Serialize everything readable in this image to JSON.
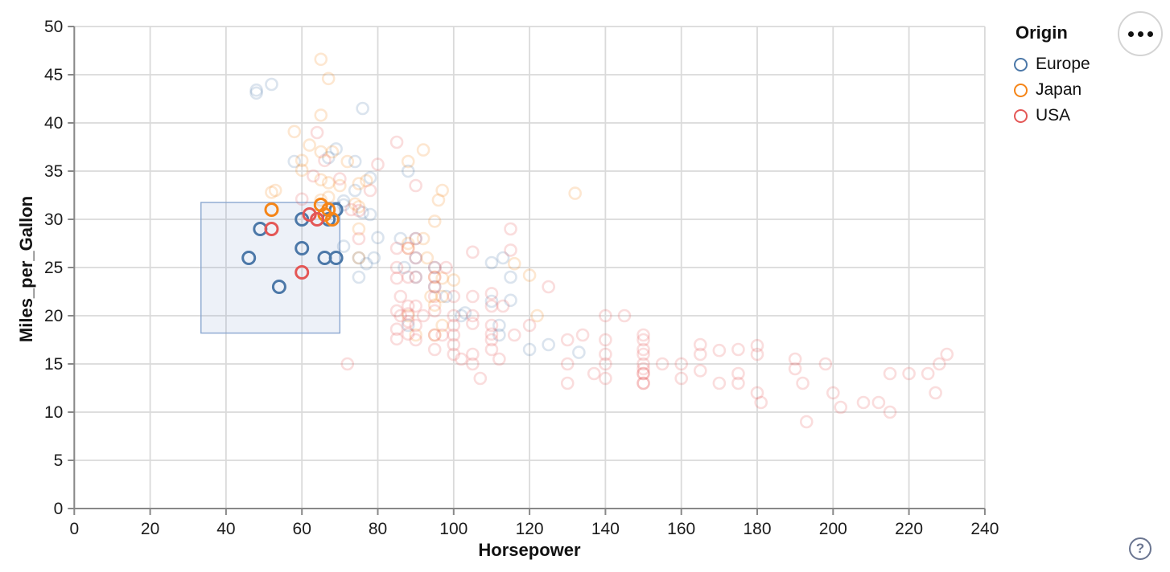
{
  "chart_data": {
    "type": "scatter",
    "title": "",
    "xlabel": "Horsepower",
    "ylabel": "Miles_per_Gallon",
    "xlim": [
      0,
      240
    ],
    "ylim": [
      0,
      50
    ],
    "x_ticks": [
      0,
      20,
      40,
      60,
      80,
      100,
      120,
      140,
      160,
      180,
      200,
      220,
      240
    ],
    "y_ticks": [
      0,
      5,
      10,
      15,
      20,
      25,
      30,
      35,
      40,
      45,
      50
    ],
    "grid": true,
    "legend": {
      "position": "top-right",
      "title": "Origin",
      "entries": [
        {
          "label": "Europe",
          "color": "#4c78a8"
        },
        {
          "label": "Japan",
          "color": "#f58518"
        },
        {
          "label": "USA",
          "color": "#e45756"
        }
      ]
    },
    "brush": {
      "x": [
        33.4,
        70
      ],
      "y": [
        18.2,
        31.75
      ],
      "fill": "#6b8cc7",
      "fill_opacity": 0.12,
      "stroke": "#8aa7d0"
    },
    "unselected_opacity": 0.2,
    "series": [
      {
        "name": "Europe",
        "color": "#4c78a8",
        "points": [
          [
            46,
            26
          ],
          [
            49,
            29
          ],
          [
            54,
            23
          ],
          [
            60,
            27
          ],
          [
            60,
            30
          ],
          [
            66,
            26
          ],
          [
            69,
            26
          ],
          [
            67,
            30
          ],
          [
            69,
            31
          ],
          [
            48,
            43.1
          ],
          [
            48,
            43.4
          ],
          [
            52,
            44
          ],
          [
            76,
            41.5
          ],
          [
            74,
            36
          ],
          [
            74,
            33
          ],
          [
            78,
            34.3
          ],
          [
            67,
            36.4
          ],
          [
            58,
            36
          ],
          [
            69,
            37.3
          ],
          [
            71,
            31.5
          ],
          [
            71,
            31.9
          ],
          [
            76,
            30.7
          ],
          [
            78,
            30.5
          ],
          [
            80,
            28.1
          ],
          [
            77,
            25.4
          ],
          [
            88,
            35
          ],
          [
            87,
            25
          ],
          [
            90,
            24
          ],
          [
            95,
            25
          ],
          [
            113,
            26
          ],
          [
            90,
            28
          ],
          [
            90,
            26
          ],
          [
            75,
            24
          ],
          [
            95,
            23
          ],
          [
            98,
            22
          ],
          [
            115,
            24
          ],
          [
            110,
            25.5
          ],
          [
            115,
            21.6
          ],
          [
            125,
            17
          ],
          [
            133,
            16.2
          ],
          [
            120,
            16.5
          ],
          [
            112,
            18
          ],
          [
            112,
            19
          ],
          [
            102,
            20
          ],
          [
            103,
            20.3
          ],
          [
            110,
            21.5
          ],
          [
            88,
            19
          ],
          [
            71,
            27.2
          ],
          [
            86,
            28
          ],
          [
            75,
            26
          ],
          [
            79,
            26
          ]
        ]
      },
      {
        "name": "Japan",
        "color": "#f58518",
        "points": [
          [
            52,
            31
          ],
          [
            65,
            31.5
          ],
          [
            67,
            31
          ],
          [
            66,
            30.5
          ],
          [
            68,
            30
          ],
          [
            65,
            46.6
          ],
          [
            67,
            44.6
          ],
          [
            65,
            40.8
          ],
          [
            58,
            39.1
          ],
          [
            62,
            37.7
          ],
          [
            60,
            36.1
          ],
          [
            60,
            35.1
          ],
          [
            65,
            37
          ],
          [
            68,
            37
          ],
          [
            65,
            34.1
          ],
          [
            52,
            32.8
          ],
          [
            53,
            33
          ],
          [
            65,
            32
          ],
          [
            70,
            33.5
          ],
          [
            72,
            36
          ],
          [
            75,
            33.7
          ],
          [
            77,
            34
          ],
          [
            75,
            31.3
          ],
          [
            74,
            31.6
          ],
          [
            88,
            36
          ],
          [
            92,
            37.2
          ],
          [
            97,
            33
          ],
          [
            96,
            32
          ],
          [
            95,
            29.8
          ],
          [
            75,
            29
          ],
          [
            75,
            26
          ],
          [
            93,
            26
          ],
          [
            67,
            32.3
          ],
          [
            67,
            33.8
          ],
          [
            88,
            27
          ],
          [
            88,
            27.5
          ],
          [
            92,
            28
          ],
          [
            94,
            22
          ],
          [
            90,
            18
          ],
          [
            97,
            19
          ],
          [
            88,
            20
          ],
          [
            95,
            24
          ],
          [
            95,
            21.1
          ],
          [
            97,
            23.9
          ],
          [
            100,
            23.7
          ],
          [
            132,
            32.7
          ],
          [
            116,
            25.4
          ],
          [
            120,
            24.2
          ],
          [
            122,
            20
          ],
          [
            97,
            22
          ],
          [
            95,
            18
          ]
        ]
      },
      {
        "name": "USA",
        "color": "#e45756",
        "points": [
          [
            52,
            29
          ],
          [
            60,
            24.5
          ],
          [
            62,
            30.5
          ],
          [
            64,
            30
          ],
          [
            63,
            34.5
          ],
          [
            70,
            34.2
          ],
          [
            75,
            30.9
          ],
          [
            66,
            36.1
          ],
          [
            64,
            39
          ],
          [
            80,
            35.7
          ],
          [
            60,
            32.1
          ],
          [
            85,
            38
          ],
          [
            90,
            33.5
          ],
          [
            78,
            33
          ],
          [
            75,
            28
          ],
          [
            73,
            31
          ],
          [
            72,
            15
          ],
          [
            85,
            27
          ],
          [
            85,
            25
          ],
          [
            85,
            23.9
          ],
          [
            85,
            20.5
          ],
          [
            85,
            18.6
          ],
          [
            85,
            17.6
          ],
          [
            86,
            22
          ],
          [
            86,
            20
          ],
          [
            88,
            27
          ],
          [
            88,
            24
          ],
          [
            88,
            21
          ],
          [
            88,
            20.2
          ],
          [
            88,
            19.4
          ],
          [
            88,
            18.1
          ],
          [
            90,
            28
          ],
          [
            90,
            26
          ],
          [
            90,
            24
          ],
          [
            90,
            21
          ],
          [
            90,
            19
          ],
          [
            90,
            17.5
          ],
          [
            92,
            20
          ],
          [
            95,
            25
          ],
          [
            95,
            24
          ],
          [
            95,
            23
          ],
          [
            95,
            22
          ],
          [
            95,
            20.5
          ],
          [
            95,
            18
          ],
          [
            95,
            16.5
          ],
          [
            97,
            18
          ],
          [
            98,
            25
          ],
          [
            100,
            22
          ],
          [
            100,
            20
          ],
          [
            100,
            19
          ],
          [
            100,
            18
          ],
          [
            100,
            17
          ],
          [
            100,
            16
          ],
          [
            102,
            15.5
          ],
          [
            105,
            26.6
          ],
          [
            105,
            22
          ],
          [
            105,
            20
          ],
          [
            105,
            19.2
          ],
          [
            105,
            16
          ],
          [
            105,
            15
          ],
          [
            107,
            13.5
          ],
          [
            110,
            22.3
          ],
          [
            110,
            21
          ],
          [
            110,
            19
          ],
          [
            110,
            18.1
          ],
          [
            110,
            17.5
          ],
          [
            110,
            16.5
          ],
          [
            112,
            15.5
          ],
          [
            115,
            26.8
          ],
          [
            115,
            29
          ],
          [
            113,
            21
          ],
          [
            116,
            18
          ],
          [
            120,
            19
          ],
          [
            125,
            23
          ],
          [
            130,
            17.5
          ],
          [
            130,
            15
          ],
          [
            130,
            13
          ],
          [
            134,
            18
          ],
          [
            137,
            14
          ],
          [
            140,
            20
          ],
          [
            140,
            17.5
          ],
          [
            140,
            16
          ],
          [
            140,
            15
          ],
          [
            140,
            13.5
          ],
          [
            145,
            20
          ],
          [
            150,
            18
          ],
          [
            150,
            17.5
          ],
          [
            150,
            16.5
          ],
          [
            150,
            16
          ],
          [
            150,
            15
          ],
          [
            150,
            14.5
          ],
          [
            150,
            14
          ],
          [
            150,
            14
          ],
          [
            150,
            13
          ],
          [
            150,
            13
          ],
          [
            155,
            15
          ],
          [
            160,
            15
          ],
          [
            160,
            13.5
          ],
          [
            165,
            17
          ],
          [
            165,
            16
          ],
          [
            165,
            14.3
          ],
          [
            170,
            16.4
          ],
          [
            170,
            13
          ],
          [
            175,
            16.5
          ],
          [
            175,
            14
          ],
          [
            175,
            13
          ],
          [
            180,
            16.9
          ],
          [
            180,
            16
          ],
          [
            180,
            12
          ],
          [
            181,
            11
          ],
          [
            190,
            15.5
          ],
          [
            190,
            14.5
          ],
          [
            192,
            13
          ],
          [
            193,
            9
          ],
          [
            198,
            15
          ],
          [
            200,
            12
          ],
          [
            202,
            10.5
          ],
          [
            208,
            11
          ],
          [
            212,
            11
          ],
          [
            215,
            10
          ],
          [
            215,
            14
          ],
          [
            220,
            14
          ],
          [
            225,
            14
          ],
          [
            228,
            15
          ],
          [
            227,
            12
          ],
          [
            230,
            16
          ]
        ]
      }
    ]
  },
  "controls": {
    "menu_button": {
      "icon": "ellipsis"
    },
    "help_button": {
      "glyph": "?"
    }
  }
}
